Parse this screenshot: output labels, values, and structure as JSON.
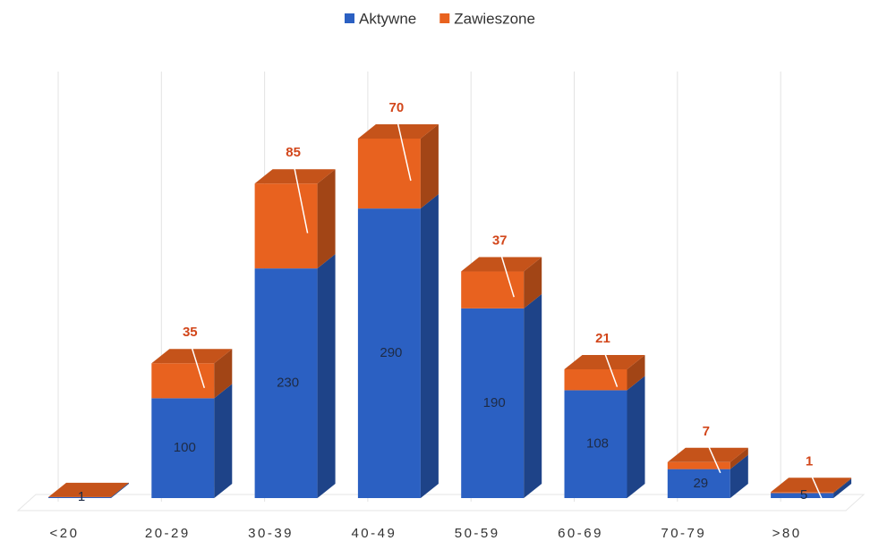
{
  "chart_data": {
    "type": "bar3d_stacked",
    "categories": [
      "<20",
      "20-29",
      "30-39",
      "40-49",
      "50-59",
      "60-69",
      "70-79",
      ">80"
    ],
    "series": [
      {
        "name": "Aktywne",
        "color": "#2b60c2",
        "values": [
          1,
          100,
          230,
          290,
          190,
          108,
          29,
          5
        ]
      },
      {
        "name": "Zawieszone",
        "color": "#e8621f",
        "values": [
          null,
          35,
          85,
          70,
          37,
          21,
          7,
          1
        ]
      }
    ],
    "legend": "top",
    "grid": true
  }
}
